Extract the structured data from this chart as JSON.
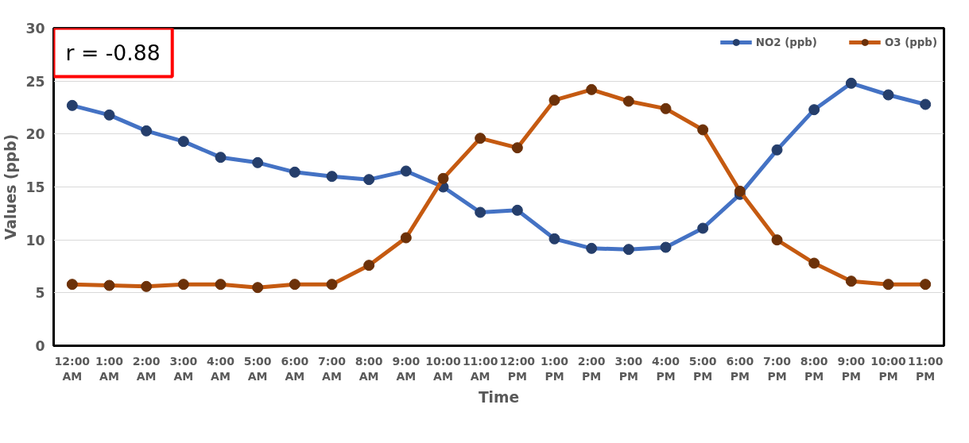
{
  "chart_data": {
    "type": "line",
    "xlabel": "Time",
    "ylabel": "Values (ppb)",
    "categories": [
      "12:00\nAM",
      "1:00\nAM",
      "2:00\nAM",
      "3:00\nAM",
      "4:00\nAM",
      "5:00\nAM",
      "6:00\nAM",
      "7:00\nAM",
      "8:00\nAM",
      "9:00\nAM",
      "10:00\nAM",
      "11:00\nAM",
      "12:00\nPM",
      "1:00\nPM",
      "2:00\nPM",
      "3:00\nPM",
      "4:00\nPM",
      "5:00\nPM",
      "6:00\nPM",
      "7:00\nPM",
      "8:00\nPM",
      "9:00\nPM",
      "10:00\nPM",
      "11:00\nPM"
    ],
    "series": [
      {
        "name": "NO2 (ppb)",
        "color": "#4472c4",
        "values": [
          22.7,
          21.8,
          20.3,
          19.3,
          17.8,
          17.3,
          16.4,
          16.0,
          15.7,
          16.5,
          15.0,
          12.6,
          12.8,
          10.1,
          9.2,
          9.1,
          9.3,
          11.1,
          14.3,
          18.5,
          22.3,
          24.8,
          23.7,
          22.8
        ]
      },
      {
        "name": "O3 (ppb)",
        "color": "#c55a11",
        "values": [
          5.8,
          5.7,
          5.6,
          5.8,
          5.8,
          5.5,
          5.8,
          5.8,
          7.6,
          10.2,
          15.8,
          19.6,
          18.7,
          23.2,
          24.2,
          23.1,
          22.4,
          20.4,
          14.6,
          10.0,
          7.8,
          6.1,
          5.8,
          5.8
        ]
      }
    ],
    "ylim": [
      0,
      30
    ],
    "yticks": [
      0,
      5,
      10,
      15,
      20,
      25,
      30
    ],
    "grid": "y",
    "legend": "top right",
    "marker": "circle",
    "line_style": "solid",
    "annotations": [
      "r = -0.88"
    ]
  }
}
